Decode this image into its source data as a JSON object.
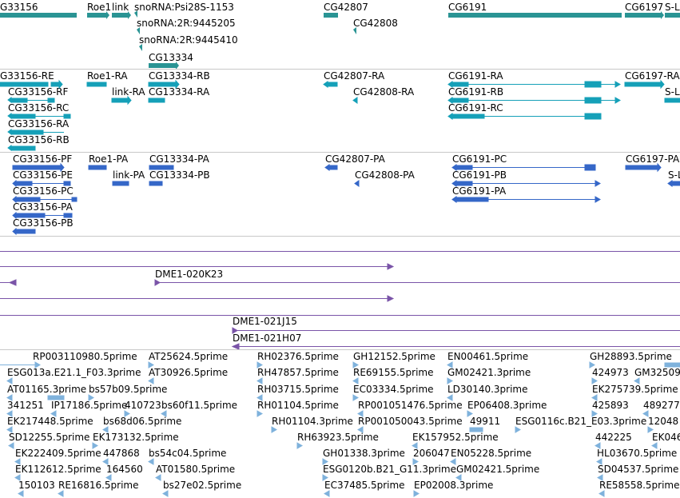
{
  "colors": {
    "gene": "#2a9494",
    "transcript": "#15a0b8",
    "protein": "#3567c8",
    "clone": "#7a54a8",
    "est": "#7fb2dc",
    "separator": "#c8c8c8"
  },
  "tracks": {
    "genes": {
      "labels": [
        "G33156",
        "Roe1",
        "link",
        "snoRNA:Psi28S-1153",
        "snoRNA:2R:9445205",
        "snoRNA:2R:9445410",
        "CG13334",
        "CG42807",
        "CG42808",
        "CG6191",
        "CG6197",
        "S-L"
      ]
    },
    "transcripts": {
      "labels": [
        "G33156-RE",
        "CG33156-RF",
        "CG33156-RC",
        "CG33156-RA",
        "CG33156-RB",
        "Roe1-RA",
        "link-RA",
        "CG13334-RB",
        "CG13334-RA",
        "CG42807-RA",
        "CG42808-RA",
        "CG6191-RA",
        "CG6191-RB",
        "CG6191-RC",
        "CG6197-RA",
        "S-L"
      ]
    },
    "proteins": {
      "labels": [
        "CG33156-PF",
        "CG33156-PE",
        "CG33156-PC",
        "CG33156-PA",
        "CG33156-PB",
        "Roe1-PA",
        "link-PA",
        "CG13334-PA",
        "CG13334-PB",
        "CG42807-PA",
        "CG42808-PA",
        "CG6191-PC",
        "CG6191-PB",
        "CG6191-PA",
        "CG6197-PA",
        "S-L"
      ]
    },
    "clones": {
      "labels": [
        "DME1-020K23",
        "DME1-021J15",
        "DME1-021H07"
      ]
    },
    "ests": {
      "labels": [
        "RP003110980.5prime",
        "AT25624.5prime",
        "RH02376.5prime",
        "GH12152.5prime",
        "EN00461.5prime",
        "GH28893.5prime",
        "ESG013a.E21.1_F03.3prime",
        "AT30926.5prime",
        "RH47857.5prime",
        "RE69155.5prime",
        "GM02421.3prime",
        "424973",
        "GM32509",
        "AT01165.3prime",
        "bs57b09.5prime",
        "RH03715.5prime",
        "EC03334.5prime",
        "LD30140.3prime",
        "EK275739.5prime",
        "341251",
        "IP17186.5prime",
        "410723",
        "bs60f11.5prime",
        "RH01104.5prime",
        "RP001051476.5prime",
        "EP06408.3prime",
        "425893",
        "489277",
        "EK217448.5prime",
        "bs68d06.5prime",
        "RH01104.3prime",
        "RP001050043.5prime",
        "49911",
        "ESG0116c.B21_E03.3prime",
        "12048",
        "SD12255.5prime",
        "EK173132.5prime",
        "RH63923.5prime",
        "EK157952.5prime",
        "442225",
        "EK046",
        "EK222409.5prime",
        "447868",
        "bs54c04.5prime",
        "GH01338.3prime",
        "206047",
        "EN05228.5prime",
        "HL03670.5prime",
        "EK112612.5prime",
        "164560",
        "AT01580.5prime",
        "ESG0120b.B21_G11.3prime",
        "GM02421.5prime",
        "SD04537.5prime",
        "150103",
        "RE16816.5prime",
        "bs27e02.5prime",
        "EC37485.5prime",
        "EP02008.3prime",
        "RE58558.5prime"
      ]
    }
  }
}
